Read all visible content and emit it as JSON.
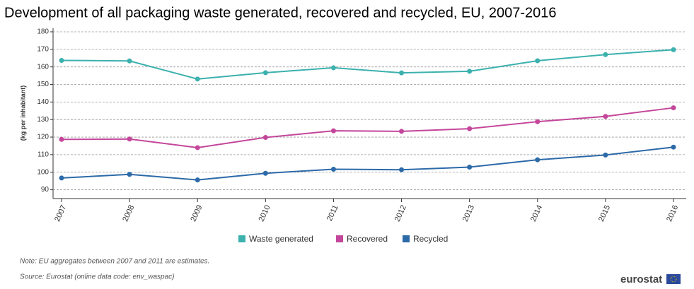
{
  "chart_data": {
    "type": "line",
    "title": "Development of all packaging waste generated, recovered and recycled, EU, 2007-2016",
    "y_label": "(kg per inhabitant)",
    "categories": [
      "2007",
      "2008",
      "2009",
      "2010",
      "2011",
      "2012",
      "2013",
      "2014",
      "2015",
      "2016"
    ],
    "series": [
      {
        "name": "Waste generated",
        "color": "#3cb1ae",
        "values": [
          163.7,
          163.4,
          153.1,
          156.7,
          159.5,
          156.6,
          157.5,
          163.5,
          167.0,
          169.8
        ]
      },
      {
        "name": "Recovered",
        "color": "#c4469a",
        "values": [
          118.7,
          118.9,
          114.0,
          119.8,
          123.6,
          123.3,
          124.8,
          128.8,
          131.8,
          136.7
        ]
      },
      {
        "name": "Recycled",
        "color": "#2c6aa8",
        "values": [
          96.7,
          98.8,
          95.6,
          99.4,
          101.7,
          101.4,
          102.9,
          107.1,
          109.8,
          114.3
        ]
      }
    ],
    "ylim": [
      85,
      180
    ],
    "yticks": [
      90,
      100,
      110,
      120,
      130,
      140,
      150,
      160,
      170,
      180
    ],
    "grid": true
  },
  "note": "Note: EU aggregates between 2007 and 2011 are estimates.",
  "source": "Source: Eurostat (online data code: env_waspac)",
  "logo": "eurostat"
}
